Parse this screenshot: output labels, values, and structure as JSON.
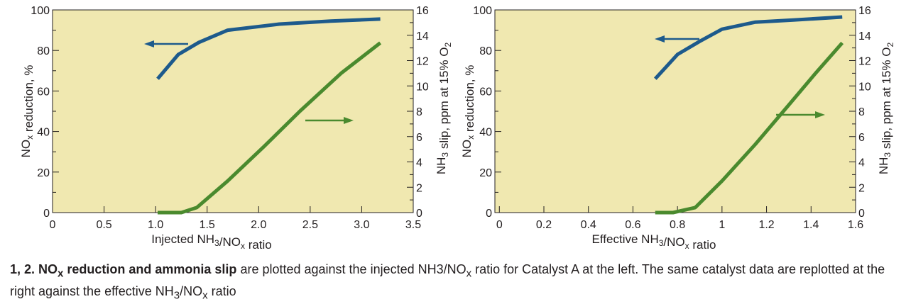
{
  "colors": {
    "plot_bg": "#f0e8b0",
    "nox_series": "#1d5a8c",
    "nh3_series": "#4a8a2e",
    "axis": "#231f20"
  },
  "chart_data": [
    {
      "type": "line",
      "xlabel": "Injected NH3/NOx ratio",
      "ylabel_left": "NOx reduction, %",
      "ylabel_right": "NH3 slip, ppm at 15% O2",
      "xlim": [
        0,
        3.5
      ],
      "ylim_left": [
        0,
        100
      ],
      "ylim_right": [
        0,
        16
      ],
      "xticks": [
        "0",
        "0.5",
        "1.0",
        "1.5",
        "2.0",
        "2.5",
        "3.0",
        "3.5"
      ],
      "yticks_left": [
        "0",
        "20",
        "40",
        "60",
        "80",
        "100"
      ],
      "yticks_right": [
        "0",
        "2",
        "4",
        "6",
        "8",
        "10",
        "12",
        "14",
        "16"
      ],
      "grid": false,
      "series": [
        {
          "axis": "left",
          "arrow": "left",
          "x": [
            1.02,
            1.22,
            1.42,
            1.7,
            2.2,
            2.7,
            3.18
          ],
          "y": [
            66,
            78,
            84,
            90,
            93,
            94.5,
            95.5
          ]
        },
        {
          "axis": "right",
          "arrow": "right",
          "x": [
            1.02,
            1.25,
            1.4,
            1.7,
            2.05,
            2.4,
            2.8,
            3.18
          ],
          "y": [
            0,
            0,
            0.4,
            2.5,
            5.2,
            8,
            11,
            13.4
          ]
        }
      ]
    },
    {
      "type": "line",
      "xlabel": "Effective NH3/NOx ratio",
      "ylabel_left": "NOx reduction, %",
      "ylabel_right": "NH3 slip, ppm at 15% O2",
      "xlim": [
        -0.02,
        1.6
      ],
      "ylim_left": [
        0,
        100
      ],
      "ylim_right": [
        0,
        16
      ],
      "xticks": [
        "0",
        "0.2",
        "0.4",
        "0.6",
        "0.8",
        "1",
        "1.2",
        "1.4",
        "1.6"
      ],
      "yticks_left": [
        "0",
        "20",
        "40",
        "60",
        "80",
        "100"
      ],
      "yticks_right": [
        "0",
        "2",
        "4",
        "6",
        "8",
        "10",
        "12",
        "14",
        "16"
      ],
      "grid": false,
      "series": [
        {
          "axis": "left",
          "arrow": "left",
          "x": [
            0.7,
            0.75,
            0.8,
            0.9,
            1.0,
            1.15,
            1.32,
            1.54
          ],
          "y": [
            66,
            72,
            78,
            84.5,
            90.5,
            94,
            95,
            96.5
          ]
        },
        {
          "axis": "right",
          "arrow": "right",
          "x": [
            0.7,
            0.78,
            0.88,
            1.0,
            1.15,
            1.3,
            1.42,
            1.54
          ],
          "y": [
            0,
            0,
            0.4,
            2.5,
            5.4,
            8.5,
            11,
            13.4
          ]
        }
      ]
    }
  ],
  "caption": {
    "num": "1, 2.",
    "bold_pre": " NO",
    "bold_sub": "x",
    "bold_post": " reduction and ammonia slip",
    "text1": " are plotted against the injected NH3/NO",
    "sub1": "x",
    "text2": " ratio for Catalyst A at the left. The same catalyst data are replotted at the right against the effective NH",
    "sub2": "3",
    "text3": "/NO",
    "sub3": "x",
    "text4": " ratio"
  }
}
